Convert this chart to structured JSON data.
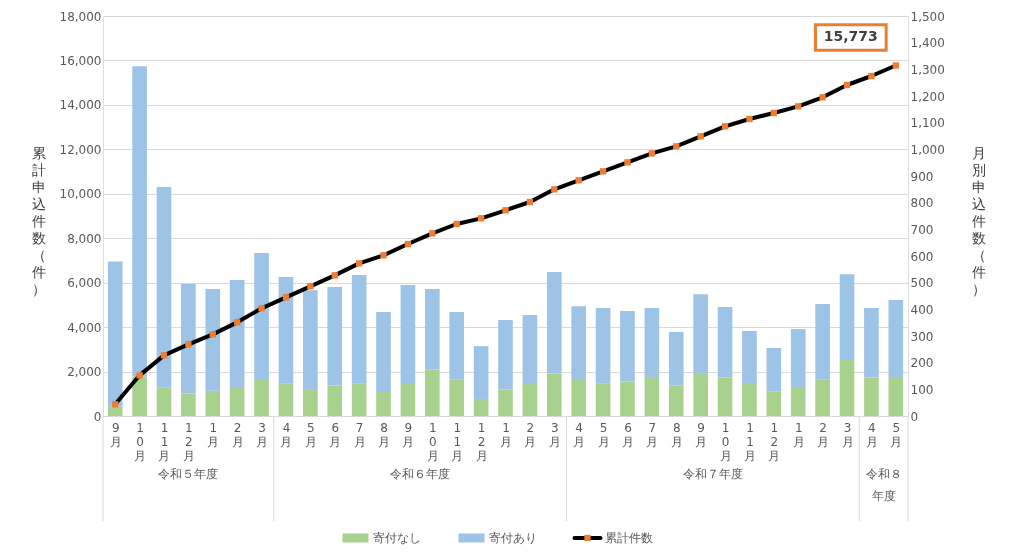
{
  "chart_data": {
    "type": "bar",
    "stacked": true,
    "categories": [
      "9月",
      "10月",
      "11月",
      "12月",
      "1月",
      "2月",
      "3月",
      "4月",
      "5月",
      "6月",
      "7月",
      "8月",
      "9月",
      "10月",
      "11月",
      "12月",
      "1月",
      "2月",
      "3月",
      "4月",
      "5月",
      "6月",
      "7月",
      "8月",
      "9月",
      "10月",
      "11月",
      "12月",
      "1月",
      "2月",
      "3月",
      "4月",
      "5月"
    ],
    "series": [
      {
        "name": "寄付なし",
        "axis": "y2",
        "color": "#a9d18e",
        "values": [
          35,
          147,
          106,
          84,
          95,
          109,
          139,
          121,
          101,
          114,
          121,
          94,
          124,
          175,
          136,
          64,
          99,
          124,
          159,
          139,
          121,
          129,
          146,
          114,
          161,
          144,
          124,
          91,
          109,
          136,
          214,
          144,
          146
        ]
      },
      {
        "name": "寄付あり",
        "axis": "y2",
        "color": "#9dc3e6",
        "values": [
          544,
          1165,
          753,
          411,
          381,
          401,
          472,
          400,
          371,
          370,
          408,
          296,
          367,
          301,
          254,
          198,
          261,
          255,
          381,
          273,
          284,
          265,
          259,
          201,
          296,
          265,
          195,
          164,
          217,
          284,
          318,
          261,
          289
        ]
      },
      {
        "name": "累計件数",
        "type": "line",
        "axis": "y",
        "color": "#000000",
        "marker": "square",
        "values": [
          525,
          1830,
          2730,
          3225,
          3675,
          4215,
          4845,
          5340,
          5835,
          6330,
          6870,
          7230,
          7740,
          8220,
          8640,
          8895,
          9255,
          9630,
          10200,
          10605,
          11010,
          11415,
          11820,
          12135,
          12585,
          13035,
          13365,
          13635,
          13935,
          14340,
          14895,
          15300,
          15773
        ],
        "value_labels": [
          null,
          null,
          null,
          null,
          null,
          null,
          null,
          null,
          null,
          null,
          null,
          null,
          null,
          null,
          null,
          null,
          null,
          null,
          null,
          null,
          null,
          null,
          null,
          null,
          null,
          null,
          null,
          null,
          null,
          null,
          null,
          null,
          "15,773"
        ]
      }
    ],
    "ylabel": "累計申込件数（件）",
    "y2label": "月別申込件数（件）",
    "ylim": [
      0,
      18000
    ],
    "yticks": [
      0,
      {
        "value": 2000,
        "label": "2,000"
      },
      {
        "value": 4000,
        "label": "4,000"
      },
      {
        "value": 6000,
        "label": "6,000"
      },
      {
        "value": 8000,
        "label": "8,000"
      },
      {
        "value": 10000,
        "label": "10,000"
      },
      {
        "value": 12000,
        "label": "12,000"
      },
      {
        "value": 14000,
        "label": "14,000"
      },
      {
        "value": 16000,
        "label": "16,000"
      },
      {
        "value": 18000,
        "label": "18,000"
      }
    ],
    "y2lim": [
      0,
      1500
    ],
    "y2ticks": [
      0,
      100,
      200,
      300,
      400,
      500,
      600,
      700,
      800,
      900,
      {
        "value": 1000,
        "label": "1,000"
      },
      {
        "value": 1100,
        "label": "1,100"
      },
      {
        "value": 1200,
        "label": "1,200"
      },
      {
        "value": 1300,
        "label": "1,300"
      },
      {
        "value": 1400,
        "label": "1,400"
      },
      {
        "value": 1500,
        "label": "1,500"
      }
    ],
    "annotations": [
      "令和５年度",
      "令和６年度",
      "令和７年度",
      "令和８年度"
    ],
    "grid": "y",
    "legend": "bottom"
  }
}
